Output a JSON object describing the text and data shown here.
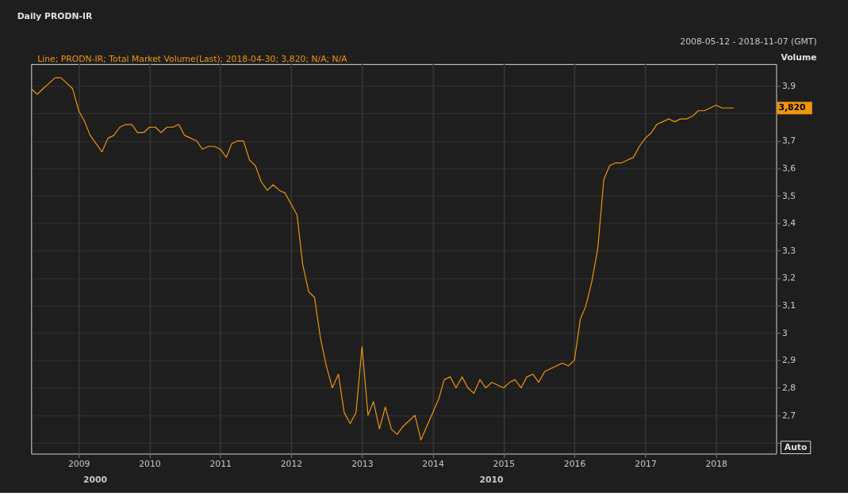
{
  "chart_data": {
    "type": "line",
    "title": "Daily PRODN-IR",
    "subtitle": "2008-05-12 - 2018-11-07 (GMT)",
    "ylabel": "Volume",
    "annotations": [
      "Line; PRODN-IR; Total Market Volume(Last);  2018-04-30;  3,820; N/A; N/A",
      "Auto",
      "2000",
      "2010",
      "3,820"
    ],
    "x": [
      "2008-05",
      "2008-06",
      "2008-07",
      "2008-08",
      "2008-09",
      "2008-10",
      "2008-11",
      "2008-12",
      "2009-01",
      "2009-02",
      "2009-03",
      "2009-04",
      "2009-05",
      "2009-06",
      "2009-07",
      "2009-08",
      "2009-09",
      "2009-10",
      "2009-11",
      "2009-12",
      "2010-01",
      "2010-02",
      "2010-03",
      "2010-04",
      "2010-05",
      "2010-06",
      "2010-07",
      "2010-08",
      "2010-09",
      "2010-10",
      "2010-11",
      "2010-12",
      "2011-01",
      "2011-02",
      "2011-03",
      "2011-04",
      "2011-05",
      "2011-06",
      "2011-07",
      "2011-08",
      "2011-09",
      "2011-10",
      "2011-11",
      "2011-12",
      "2012-01",
      "2012-02",
      "2012-03",
      "2012-04",
      "2012-05",
      "2012-06",
      "2012-07",
      "2012-08",
      "2012-09",
      "2012-10",
      "2012-11",
      "2012-12",
      "2013-01",
      "2013-02",
      "2013-03",
      "2013-04",
      "2013-05",
      "2013-06",
      "2013-07",
      "2013-08",
      "2013-09",
      "2013-10",
      "2013-11",
      "2013-12",
      "2014-01",
      "2014-02",
      "2014-03",
      "2014-04",
      "2014-05",
      "2014-06",
      "2014-07",
      "2014-08",
      "2014-09",
      "2014-10",
      "2014-11",
      "2014-12",
      "2015-01",
      "2015-02",
      "2015-03",
      "2015-04",
      "2015-05",
      "2015-06",
      "2015-07",
      "2015-08",
      "2015-09",
      "2015-10",
      "2015-11",
      "2015-12",
      "2016-01",
      "2016-02",
      "2016-03",
      "2016-04",
      "2016-05",
      "2016-06",
      "2016-07",
      "2016-08",
      "2016-09",
      "2016-10",
      "2016-11",
      "2016-12",
      "2017-01",
      "2017-02",
      "2017-03",
      "2017-04",
      "2017-05",
      "2017-06",
      "2017-07",
      "2017-08",
      "2017-09",
      "2017-10",
      "2017-11",
      "2017-12",
      "2018-01",
      "2018-02",
      "2018-03",
      "2018-04"
    ],
    "series": [
      {
        "color": "#f0960a",
        "values": [
          3.89,
          3.87,
          3.89,
          3.91,
          3.93,
          3.93,
          3.91,
          3.89,
          3.81,
          3.77,
          3.72,
          3.69,
          3.66,
          3.71,
          3.72,
          3.75,
          3.76,
          3.76,
          3.73,
          3.73,
          3.75,
          3.75,
          3.73,
          3.75,
          3.75,
          3.76,
          3.72,
          3.71,
          3.7,
          3.67,
          3.68,
          3.68,
          3.67,
          3.64,
          3.69,
          3.7,
          3.7,
          3.63,
          3.61,
          3.55,
          3.52,
          3.54,
          3.52,
          3.51,
          3.47,
          3.43,
          3.25,
          3.15,
          3.13,
          2.98,
          2.88,
          2.8,
          2.85,
          2.71,
          2.67,
          2.71,
          2.95,
          2.7,
          2.75,
          2.65,
          2.73,
          2.65,
          2.63,
          2.66,
          2.68,
          2.7,
          2.61,
          2.66,
          2.71,
          2.76,
          2.83,
          2.84,
          2.8,
          2.84,
          2.8,
          2.78,
          2.83,
          2.8,
          2.82,
          2.81,
          2.8,
          2.82,
          2.83,
          2.8,
          2.84,
          2.85,
          2.82,
          2.86,
          2.87,
          2.88,
          2.89,
          2.88,
          2.9,
          3.05,
          3.1,
          3.19,
          3.31,
          3.56,
          3.61,
          3.62,
          3.62,
          3.63,
          3.64,
          3.68,
          3.71,
          3.73,
          3.76,
          3.77,
          3.78,
          3.77,
          3.78,
          3.78,
          3.79,
          3.81,
          3.81,
          3.82,
          3.83,
          3.82,
          3.82,
          3.82
        ]
      }
    ],
    "xlim": [
      "2008-05-01",
      "2018-11-07"
    ],
    "xticks": [
      "2009",
      "2010",
      "2011",
      "2012",
      "2013",
      "2014",
      "2015",
      "2016",
      "2017",
      "2018"
    ],
    "ylim": [
      2.56,
      3.98
    ],
    "yticks": [
      {
        "value": 2.6,
        "label": null
      },
      {
        "value": 2.7,
        "label": "2,7"
      },
      {
        "value": 2.8,
        "label": "2,8"
      },
      {
        "value": 2.9,
        "label": "2,9"
      },
      {
        "value": 3.0,
        "label": "3"
      },
      {
        "value": 3.1,
        "label": "3,1"
      },
      {
        "value": 3.2,
        "label": "3,2"
      },
      {
        "value": 3.3,
        "label": "3,3"
      },
      {
        "value": 3.4,
        "label": "3,4"
      },
      {
        "value": 3.5,
        "label": "3,5"
      },
      {
        "value": 3.6,
        "label": "3,6"
      },
      {
        "value": 3.7,
        "label": "3,7"
      },
      {
        "value": 3.8,
        "label": null
      },
      {
        "value": 3.9,
        "label": "3,9"
      }
    ],
    "grid": true,
    "marker": "none",
    "line_style": "solid"
  }
}
